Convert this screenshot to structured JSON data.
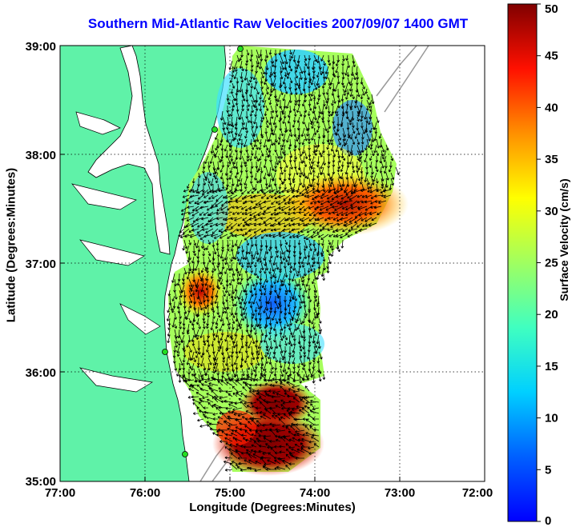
{
  "map": {
    "title": "Southern Mid-Atlantic Raw Velocities 2007/09/07 1400 GMT",
    "xlabel": "Longitude (Degrees:Minutes)",
    "ylabel": "Latitude (Degrees:Minutes)",
    "x_ticks": [
      "77:00",
      "76:00",
      "75:00",
      "74:00",
      "73:00",
      "72:00"
    ],
    "y_ticks": [
      "39:00",
      "38:00",
      "37:00",
      "36:00",
      "35:00"
    ],
    "xlim": [
      -77,
      -72
    ],
    "ylim": [
      35,
      39
    ],
    "colors": {
      "land": "#5ff2a8",
      "title": "#0000ff",
      "station": "#22dd22"
    }
  },
  "colorbar": {
    "label": "Surface Velocity (cm/s)",
    "ticks": [
      "0",
      "5",
      "10",
      "15",
      "20",
      "25",
      "30",
      "35",
      "40",
      "45",
      "50"
    ],
    "range": [
      0,
      50
    ]
  }
}
